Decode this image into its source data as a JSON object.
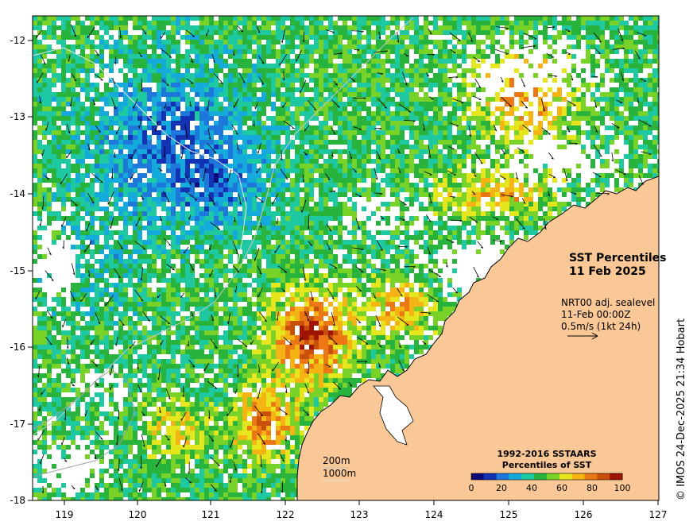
{
  "map": {
    "title": "SST Percentiles",
    "date": "11 Feb 2025",
    "current_info": {
      "line1": "NRT00 adj. sealevel",
      "line2": "11-Feb 00:00Z",
      "line3": "0.5m/s (1kt 24h)"
    },
    "contours": {
      "c200": "200m",
      "c1000": "1000m"
    },
    "legend": {
      "title_line1": "1992-2016 SSTAARS",
      "title_line2": "Percentiles of SST",
      "ticks": [
        "0",
        "20",
        "40",
        "60",
        "80",
        "100"
      ],
      "colors": [
        "#0a0a78",
        "#1432b4",
        "#1e78dc",
        "#14aadc",
        "#1ec8a0",
        "#28b43c",
        "#78d228",
        "#e6e61e",
        "#f5b414",
        "#eb7814",
        "#c8500a",
        "#a01400"
      ]
    },
    "credit": "© IMOS 24-Dec-2025 21:34 Hobart",
    "y_axis": {
      "ticks": [
        "-12",
        "-13",
        "-14",
        "-15",
        "-16",
        "-17",
        "-18"
      ]
    },
    "x_axis": {
      "ticks": [
        "119",
        "120",
        "121",
        "122",
        "123",
        "124",
        "125",
        "126",
        "127"
      ]
    },
    "land_color": "#fac896",
    "cloud_color": "#ffffff"
  }
}
